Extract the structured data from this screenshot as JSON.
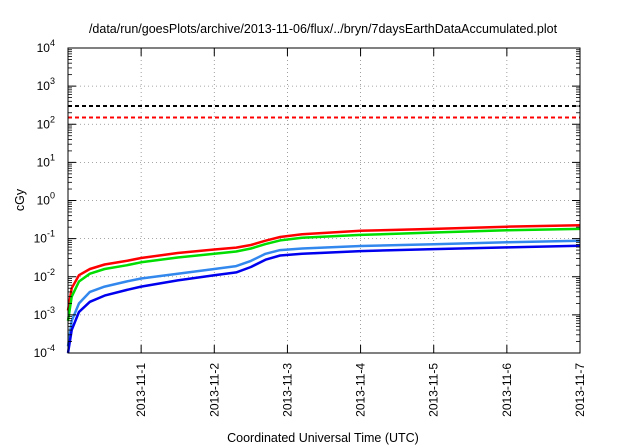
{
  "chart_data": {
    "type": "line",
    "title": "/data/run/goesPlots/archive/2013-11-06/flux/../bryn/7daysEarthDataAccumulated.plot",
    "xlabel": "Coordinated Universal Time (UTC)",
    "ylabel": "cGy",
    "yscale": "log",
    "ylim": [
      0.0001,
      10000
    ],
    "xlim": [
      0,
      7
    ],
    "grid": true,
    "legend": "none",
    "x_ticks": [
      {
        "x": 1,
        "label": "2013-11-1"
      },
      {
        "x": 2,
        "label": "2013-11-2"
      },
      {
        "x": 3,
        "label": "2013-11-3"
      },
      {
        "x": 4,
        "label": "2013-11-4"
      },
      {
        "x": 5,
        "label": "2013-11-5"
      },
      {
        "x": 6,
        "label": "2013-11-6"
      },
      {
        "x": 7,
        "label": "2013-11-7"
      }
    ],
    "y_ticks": [
      {
        "value": 0.0001,
        "base": "10",
        "exp": "-4"
      },
      {
        "value": 0.001,
        "base": "10",
        "exp": "-3"
      },
      {
        "value": 0.01,
        "base": "10",
        "exp": "-2"
      },
      {
        "value": 0.1,
        "base": "10",
        "exp": "-1"
      },
      {
        "value": 1,
        "base": "10",
        "exp": "0"
      },
      {
        "value": 10,
        "base": "10",
        "exp": "1"
      },
      {
        "value": 100,
        "base": "10",
        "exp": "2"
      },
      {
        "value": 1000,
        "base": "10",
        "exp": "3"
      },
      {
        "value": 10000,
        "base": "10",
        "exp": "4"
      }
    ],
    "reference_lines": [
      {
        "y": 300,
        "color": "#000000",
        "style": "dashed"
      },
      {
        "y": 150,
        "color": "#ff0000",
        "style": "dashed"
      }
    ],
    "series": [
      {
        "color": "#ff0000",
        "x": [
          0,
          0.05,
          0.15,
          0.3,
          0.5,
          0.8,
          1.0,
          1.5,
          2.0,
          2.3,
          2.5,
          2.7,
          2.9,
          3.2,
          4.0,
          5.0,
          6.0,
          7.0
        ],
        "y": [
          0.0013,
          0.005,
          0.011,
          0.016,
          0.021,
          0.026,
          0.031,
          0.042,
          0.052,
          0.058,
          0.068,
          0.088,
          0.11,
          0.13,
          0.16,
          0.18,
          0.205,
          0.225
        ]
      },
      {
        "color": "#00dd00",
        "x": [
          0,
          0.05,
          0.15,
          0.3,
          0.5,
          0.8,
          1.0,
          1.5,
          2.0,
          2.3,
          2.5,
          2.7,
          2.9,
          3.2,
          4.0,
          5.0,
          6.0,
          7.0
        ],
        "y": [
          0.0007,
          0.003,
          0.0075,
          0.012,
          0.016,
          0.02,
          0.024,
          0.032,
          0.04,
          0.046,
          0.055,
          0.072,
          0.09,
          0.105,
          0.125,
          0.145,
          0.165,
          0.18
        ]
      },
      {
        "color": "#3388ee",
        "x": [
          0,
          0.05,
          0.15,
          0.3,
          0.5,
          0.8,
          1.0,
          1.5,
          2.0,
          2.3,
          2.5,
          2.7,
          2.9,
          3.2,
          4.0,
          5.0,
          6.0,
          7.0
        ],
        "y": [
          0.00015,
          0.0007,
          0.002,
          0.004,
          0.0055,
          0.0075,
          0.009,
          0.012,
          0.016,
          0.019,
          0.026,
          0.04,
          0.05,
          0.055,
          0.064,
          0.071,
          0.08,
          0.088
        ]
      },
      {
        "color": "#0000ee",
        "x": [
          0,
          0.05,
          0.15,
          0.3,
          0.5,
          0.8,
          1.0,
          1.5,
          2.0,
          2.3,
          2.5,
          2.7,
          2.9,
          3.2,
          4.0,
          5.0,
          6.0,
          7.0
        ],
        "y": [
          0.0001,
          0.0004,
          0.0012,
          0.0022,
          0.0032,
          0.0045,
          0.0055,
          0.008,
          0.011,
          0.013,
          0.018,
          0.028,
          0.036,
          0.04,
          0.047,
          0.053,
          0.059,
          0.065
        ]
      }
    ]
  }
}
